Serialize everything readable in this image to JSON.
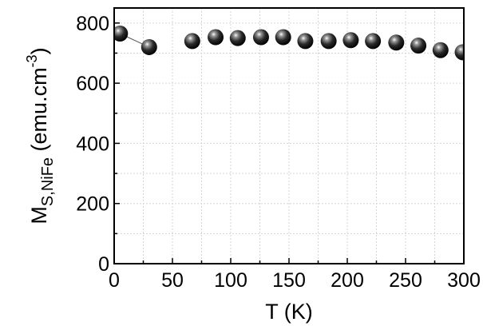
{
  "chart_data": {
    "type": "scatter",
    "xlabel": "T (K)",
    "ylabel": {
      "main": "M",
      "subscript": "S,NiFe",
      "units_prefix": " (emu.cm",
      "units_superscript": "-3",
      "units_suffix": ")"
    },
    "xlim": [
      0,
      300
    ],
    "ylim": [
      0,
      850
    ],
    "xticks": [
      0,
      50,
      100,
      150,
      200,
      250,
      300
    ],
    "yticks": [
      0,
      200,
      400,
      600,
      800
    ],
    "x_minor_step": 25,
    "y_minor_step": 100,
    "grid": true,
    "marker": "sphere",
    "marker_color": "#000000",
    "connector": "first-two-points",
    "series": [
      {
        "x": [
          5,
          30,
          67,
          87,
          106,
          126,
          145,
          164,
          184,
          203,
          222,
          242,
          261,
          280,
          299
        ],
        "y": [
          765,
          720,
          740,
          753,
          750,
          753,
          753,
          740,
          740,
          743,
          740,
          735,
          725,
          710,
          703
        ]
      }
    ]
  }
}
